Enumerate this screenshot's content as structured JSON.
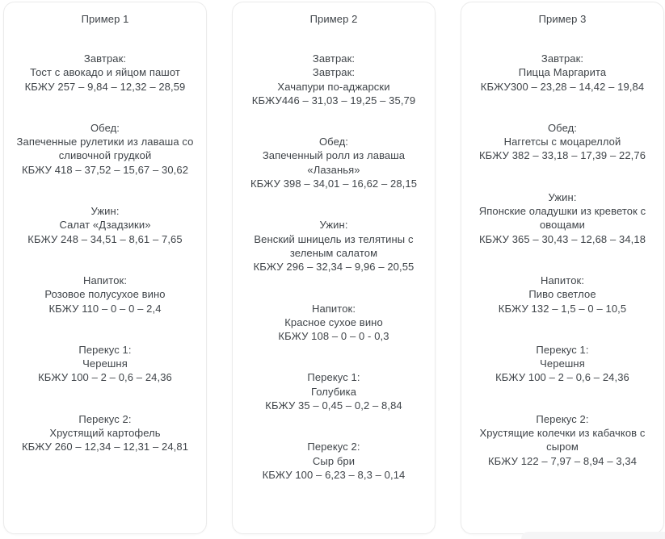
{
  "page": {
    "background_color": "#ffffff",
    "card_background": "#ffffff",
    "card_border_color": "#ebebeb",
    "text_color": "#3f4449"
  },
  "cards": [
    {
      "title": "Пример 1",
      "blocks": [
        {
          "lines": [
            "Завтрак:",
            "Тост с авокадо и яйцом пашот",
            "КБЖУ 257 – 9,84 – 12,32 – 28,59"
          ]
        },
        {
          "lines": [
            "Обед:",
            "Запеченные рулетики из лаваша со сливочной грудкой",
            "КБЖУ 418 – 37,52 – 15,67 – 30,62"
          ]
        },
        {
          "lines": [
            "Ужин:",
            "Салат «Дзадзики»",
            "КБЖУ 248 – 34,51 – 8,61 – 7,65"
          ]
        },
        {
          "lines": [
            "Напиток:",
            "Розовое полусухое вино",
            "КБЖУ 110 – 0 – 0 – 2,4"
          ]
        },
        {
          "lines": [
            "Перекус 1:",
            "Черешня",
            "КБЖУ 100 – 2 – 0,6 – 24,36"
          ]
        },
        {
          "lines": [
            "Перекус 2:",
            "Хрустящий картофель",
            "КБЖУ 260 – 12,34 – 12,31 – 24,81"
          ]
        }
      ]
    },
    {
      "title": "Пример 2",
      "blocks": [
        {
          "lines": [
            "Завтрак:",
            "Завтрак:",
            "Хачапури по-аджарски",
            "КБЖУ446 – 31,03 – 19,25 – 35,79"
          ]
        },
        {
          "lines": [
            "Обед:",
            "Запеченный ролл из лаваша «Лазанья»",
            "КБЖУ 398 – 34,01 – 16,62 – 28,15"
          ]
        },
        {
          "lines": [
            "Ужин:",
            "Венский шницель из телятины с зеленым салатом",
            "КБЖУ 296 – 32,34 – 9,96 – 20,55"
          ]
        },
        {
          "lines": [
            "Напиток:",
            "Красное сухое вино",
            "КБЖУ 108 – 0 – 0 - 0,3"
          ]
        },
        {
          "lines": [
            "Перекус 1:",
            "Голубика",
            "КБЖУ 35 – 0,45 – 0,2 – 8,84"
          ]
        },
        {
          "lines": [
            "Перекус 2:",
            "Сыр бри",
            "КБЖУ 100 – 6,23 – 8,3 – 0,14"
          ]
        }
      ]
    },
    {
      "title": "Пример 3",
      "blocks": [
        {
          "lines": [
            "Завтрак:",
            "Пицца Маргарита",
            "КБЖУ300 – 23,28 – 14,42 – 19,84"
          ]
        },
        {
          "lines": [
            "Обед:",
            "Наггетсы с моцареллой",
            "КБЖУ 382 – 33,18 – 17,39 – 22,76"
          ]
        },
        {
          "lines": [
            "Ужин:",
            "Японские оладушки из креветок с овощами",
            "КБЖУ 365 – 30,43 – 12,68 – 34,18"
          ]
        },
        {
          "lines": [
            "Напиток:",
            "Пиво светлое",
            "КБЖУ 132 – 1,5 – 0 – 10,5"
          ]
        },
        {
          "lines": [
            "Перекус 1:",
            "Черешня",
            "КБЖУ 100 – 2 – 0,6 – 24,36"
          ]
        },
        {
          "lines": [
            "Перекус 2:",
            "Хрустящие колечки из кабачков с сыром",
            "КБЖУ 122 – 7,97 – 8,94 – 3,34"
          ]
        }
      ]
    }
  ]
}
